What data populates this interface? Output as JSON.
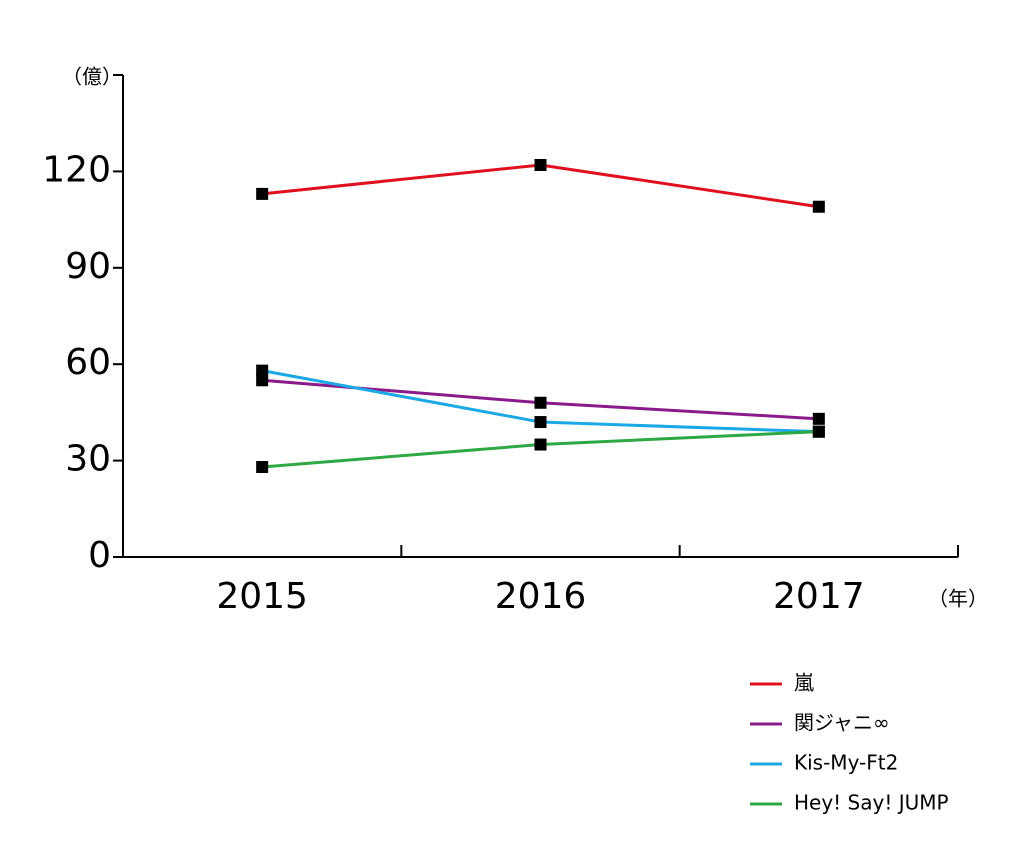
{
  "chart_data": {
    "type": "line",
    "y_unit": "（億）",
    "x_unit": "（年）",
    "categories": [
      "2015",
      "2016",
      "2017"
    ],
    "series": [
      {
        "name": "嵐",
        "color": "#e0101e",
        "values": [
          113,
          122,
          109
        ]
      },
      {
        "name": "関ジャニ∞",
        "color": "#8b1a8b",
        "values": [
          55,
          48,
          43
        ]
      },
      {
        "name": "Kis-My-Ft2",
        "color": "#1ba8e6",
        "values": [
          58,
          42,
          39
        ]
      },
      {
        "name": "Hey! Say! JUMP",
        "color": "#2ea843",
        "values": [
          28,
          35,
          39
        ]
      }
    ],
    "ylim": [
      0,
      150
    ],
    "yticks": [
      0,
      30,
      60,
      90,
      120
    ],
    "marker_color": "#000000"
  }
}
